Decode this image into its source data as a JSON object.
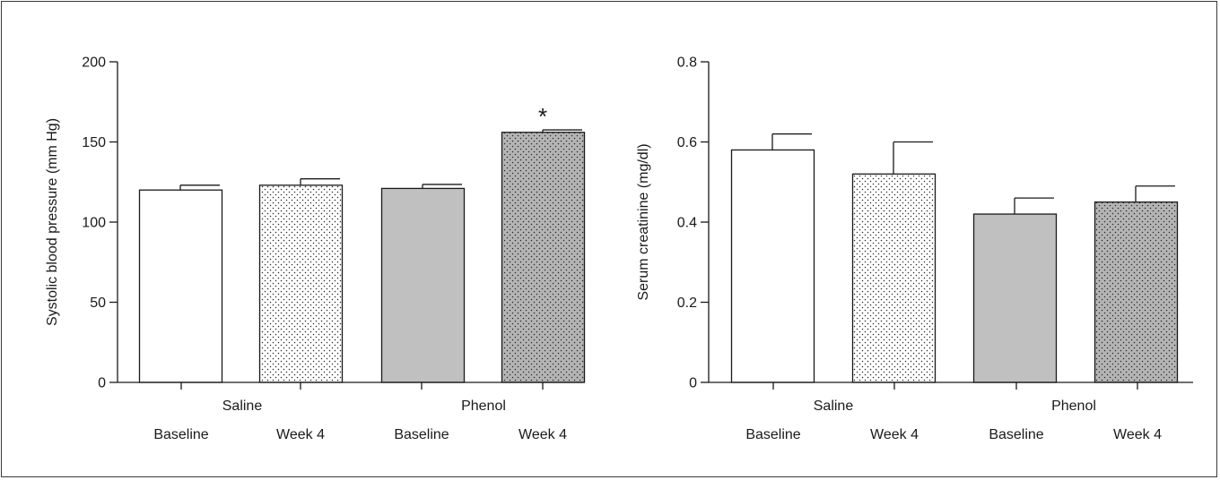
{
  "colors": {
    "axis": "#1a1a1a",
    "saline_baseline": "#ffffff",
    "saline_week4": "#ffffff",
    "phenol_baseline": "#c0c0c0",
    "phenol_week4": "#b4b4b4",
    "dots": "#2a2a2a"
  },
  "chart_data": [
    {
      "type": "bar",
      "ylabel": "Systolic blood pressure (mm Hg)",
      "ylim": [
        0,
        200
      ],
      "yticks": [
        0,
        50,
        100,
        150,
        200
      ],
      "ytick_labels": [
        "0",
        "50",
        "100",
        "150",
        "200"
      ],
      "groups": [
        "Saline",
        "Phenol"
      ],
      "categories": [
        "Baseline",
        "Week 4",
        "Baseline",
        "Week 4"
      ],
      "values": [
        120,
        123,
        121,
        156
      ],
      "errors": [
        3,
        4,
        2.5,
        1.5
      ],
      "annotations": [
        "",
        "",
        "",
        "*"
      ],
      "fills": [
        "white",
        "white-dotted",
        "grey",
        "grey-dotted"
      ],
      "grid": false
    },
    {
      "type": "bar",
      "ylabel": "Serum creatinine (mg/dl)",
      "ylim": [
        0,
        0.8
      ],
      "yticks": [
        0,
        0.2,
        0.4,
        0.6,
        0.8
      ],
      "ytick_labels": [
        "0",
        "0.2",
        "0.4",
        "0.6",
        "0.8"
      ],
      "groups": [
        "Saline",
        "Phenol"
      ],
      "categories": [
        "Baseline",
        "Week 4",
        "Baseline",
        "Week 4"
      ],
      "values": [
        0.58,
        0.52,
        0.42,
        0.45
      ],
      "errors": [
        0.04,
        0.08,
        0.04,
        0.04
      ],
      "annotations": [
        "",
        "",
        "",
        ""
      ],
      "fills": [
        "white",
        "white-dotted",
        "grey",
        "grey-dotted"
      ],
      "grid": false
    }
  ]
}
